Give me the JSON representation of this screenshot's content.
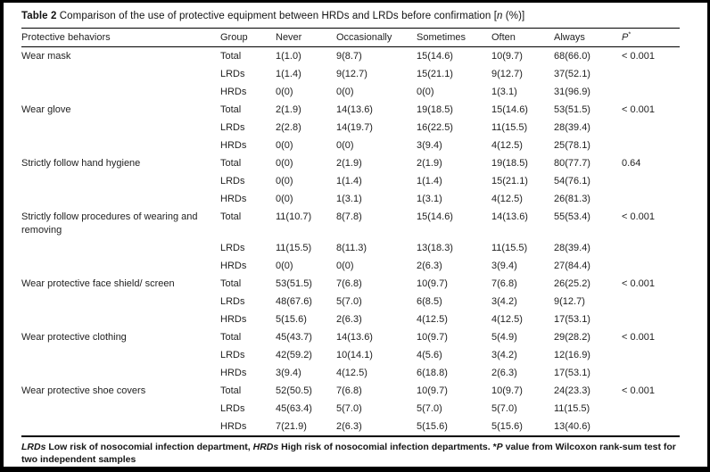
{
  "title": {
    "label": "Table 2",
    "text_pre": " Comparison of the use of protective equipment between HRDs and LRDs before confirmation [",
    "n": "n",
    "text_post": " (%)]"
  },
  "table": {
    "columns": [
      "Protective behaviors",
      "Group",
      "Never",
      "Occasionally",
      "Sometimes",
      "Often",
      "Always"
    ],
    "p_header": {
      "letter": "P",
      "sup": "*"
    },
    "behaviors": [
      {
        "name": "Wear mask",
        "rows": [
          {
            "group": "Total",
            "never": "1(1.0)",
            "occasionally": "9(8.7)",
            "sometimes": "15(14.6)",
            "often": "10(9.7)",
            "always": "68(66.0)",
            "p": "< 0.001"
          },
          {
            "group": "LRDs",
            "never": "1(1.4)",
            "occasionally": "9(12.7)",
            "sometimes": "15(21.1)",
            "often": "9(12.7)",
            "always": "37(52.1)",
            "p": ""
          },
          {
            "group": "HRDs",
            "never": "0(0)",
            "occasionally": "0(0)",
            "sometimes": "0(0)",
            "often": "1(3.1)",
            "always": "31(96.9)",
            "p": ""
          }
        ]
      },
      {
        "name": "Wear glove",
        "rows": [
          {
            "group": "Total",
            "never": "2(1.9)",
            "occasionally": "14(13.6)",
            "sometimes": "19(18.5)",
            "often": "15(14.6)",
            "always": "53(51.5)",
            "p": "< 0.001"
          },
          {
            "group": "LRDs",
            "never": "2(2.8)",
            "occasionally": "14(19.7)",
            "sometimes": "16(22.5)",
            "often": "11(15.5)",
            "always": "28(39.4)",
            "p": ""
          },
          {
            "group": "HRDs",
            "never": "0(0)",
            "occasionally": "0(0)",
            "sometimes": "3(9.4)",
            "often": "4(12.5)",
            "always": "25(78.1)",
            "p": ""
          }
        ]
      },
      {
        "name": "Strictly follow hand hygiene",
        "rows": [
          {
            "group": "Total",
            "never": "0(0)",
            "occasionally": "2(1.9)",
            "sometimes": "2(1.9)",
            "often": "19(18.5)",
            "always": "80(77.7)",
            "p": "0.64"
          },
          {
            "group": "LRDs",
            "never": "0(0)",
            "occasionally": "1(1.4)",
            "sometimes": "1(1.4)",
            "often": "15(21.1)",
            "always": "54(76.1)",
            "p": ""
          },
          {
            "group": "HRDs",
            "never": "0(0)",
            "occasionally": "1(3.1)",
            "sometimes": "1(3.1)",
            "often": "4(12.5)",
            "always": "26(81.3)",
            "p": ""
          }
        ]
      },
      {
        "name": "Strictly follow procedures of wearing and removing",
        "rows": [
          {
            "group": "Total",
            "never": "11(10.7)",
            "occasionally": "8(7.8)",
            "sometimes": "15(14.6)",
            "often": "14(13.6)",
            "always": "55(53.4)",
            "p": "< 0.001"
          },
          {
            "group": "LRDs",
            "never": "11(15.5)",
            "occasionally": "8(11.3)",
            "sometimes": "13(18.3)",
            "often": "11(15.5)",
            "always": "28(39.4)",
            "p": ""
          },
          {
            "group": "HRDs",
            "never": "0(0)",
            "occasionally": "0(0)",
            "sometimes": "2(6.3)",
            "often": "3(9.4)",
            "always": "27(84.4)",
            "p": ""
          }
        ]
      },
      {
        "name": "Wear protective face shield/ screen",
        "rows": [
          {
            "group": "Total",
            "never": "53(51.5)",
            "occasionally": "7(6.8)",
            "sometimes": "10(9.7)",
            "often": "7(6.8)",
            "always": "26(25.2)",
            "p": "< 0.001"
          },
          {
            "group": "LRDs",
            "never": "48(67.6)",
            "occasionally": "5(7.0)",
            "sometimes": "6(8.5)",
            "often": "3(4.2)",
            "always": "9(12.7)",
            "p": ""
          },
          {
            "group": "HRDs",
            "never": "5(15.6)",
            "occasionally": "2(6.3)",
            "sometimes": "4(12.5)",
            "often": "4(12.5)",
            "always": "17(53.1)",
            "p": ""
          }
        ]
      },
      {
        "name": "Wear protective clothing",
        "rows": [
          {
            "group": "Total",
            "never": "45(43.7)",
            "occasionally": "14(13.6)",
            "sometimes": "10(9.7)",
            "often": "5(4.9)",
            "always": "29(28.2)",
            "p": "< 0.001"
          },
          {
            "group": "LRDs",
            "never": "42(59.2)",
            "occasionally": "10(14.1)",
            "sometimes": "4(5.6)",
            "often": "3(4.2)",
            "always": "12(16.9)",
            "p": ""
          },
          {
            "group": "HRDs",
            "never": "3(9.4)",
            "occasionally": "4(12.5)",
            "sometimes": "6(18.8)",
            "often": "2(6.3)",
            "always": "17(53.1)",
            "p": ""
          }
        ]
      },
      {
        "name": "Wear protective shoe covers",
        "rows": [
          {
            "group": "Total",
            "never": "52(50.5)",
            "occasionally": "7(6.8)",
            "sometimes": "10(9.7)",
            "often": "10(9.7)",
            "always": "24(23.3)",
            "p": "< 0.001"
          },
          {
            "group": "LRDs",
            "never": "45(63.4)",
            "occasionally": "5(7.0)",
            "sometimes": "5(7.0)",
            "often": "5(7.0)",
            "always": "11(15.5)",
            "p": ""
          },
          {
            "group": "HRDs",
            "never": "7(21.9)",
            "occasionally": "2(6.3)",
            "sometimes": "5(15.6)",
            "often": "5(15.6)",
            "always": "13(40.6)",
            "p": ""
          }
        ]
      }
    ]
  },
  "footnote": {
    "segments": [
      {
        "text": "LRDs",
        "italic": true
      },
      {
        "text": " Low risk of nosocomial infection department, ",
        "italic": false
      },
      {
        "text": "HRDs",
        "italic": true
      },
      {
        "text": " High risk of nosocomial infection departments. *",
        "italic": false
      },
      {
        "text": "P",
        "italic": true
      },
      {
        "text": " value from Wilcoxon rank-sum test for two independent samples",
        "italic": false
      }
    ]
  }
}
